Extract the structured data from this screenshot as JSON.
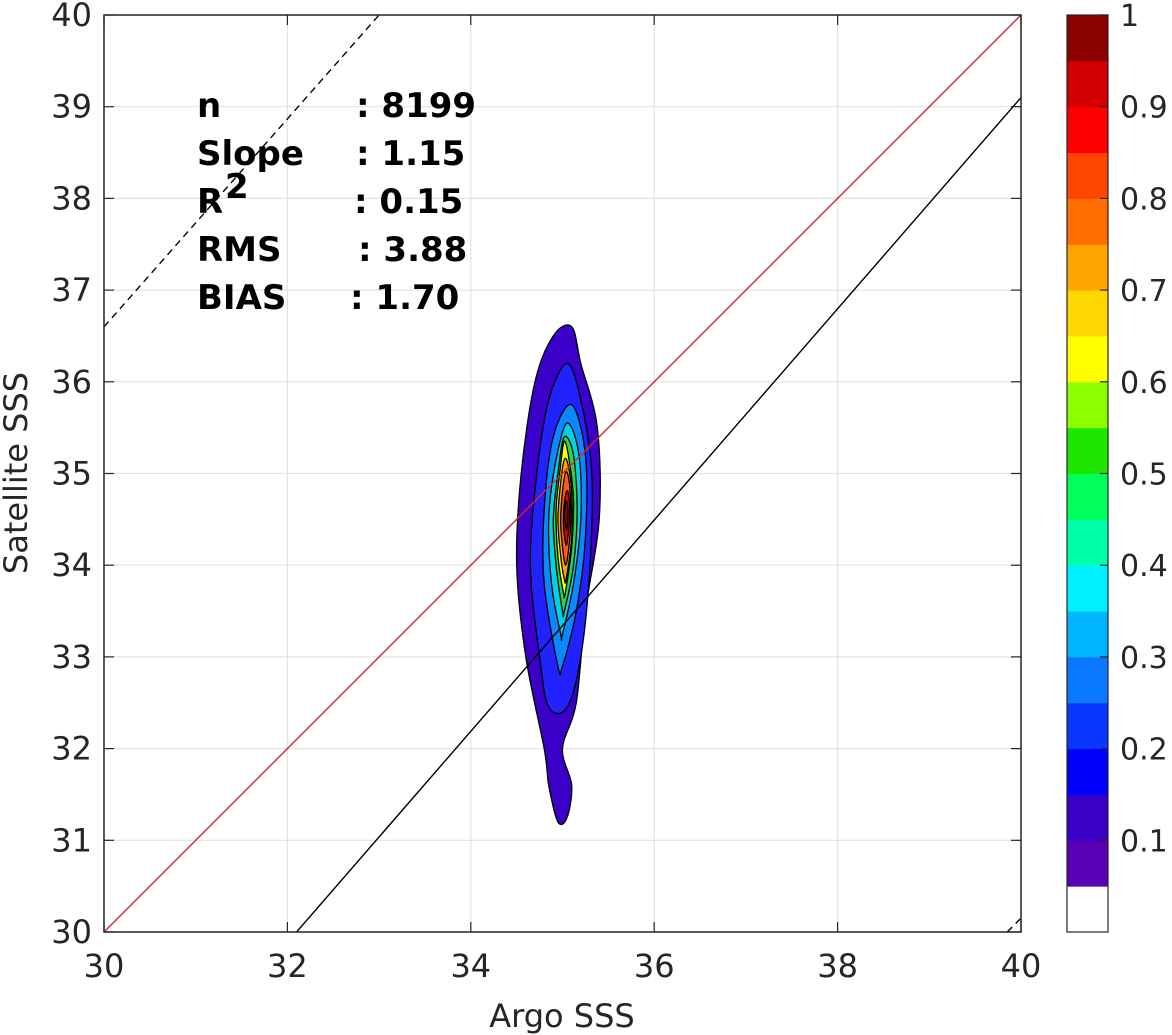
{
  "chart_data": {
    "type": "contour",
    "xlabel": "Argo SSS",
    "ylabel": "Satellite SSS",
    "xlim": [
      30,
      40
    ],
    "ylim": [
      30,
      40
    ],
    "x_ticks": [
      "30",
      "32",
      "34",
      "36",
      "38",
      "40"
    ],
    "y_ticks": [
      "30",
      "31",
      "32",
      "33",
      "34",
      "35",
      "36",
      "37",
      "38",
      "39",
      "40"
    ],
    "grid": true,
    "stats": [
      {
        "label": "n",
        "value": ": 8199"
      },
      {
        "label": "Slope",
        "value": ": 1.15"
      },
      {
        "label": "R",
        "sup": "2",
        "value": ": 0.15"
      },
      {
        "label": "RMS",
        "value": ": 3.88"
      },
      {
        "label": "BIAS",
        "value": ": 1.70"
      }
    ],
    "lines": [
      {
        "name": "one-to-one",
        "color": "#d62728",
        "style": "solid",
        "points": [
          [
            30,
            30
          ],
          [
            40,
            40
          ]
        ]
      },
      {
        "name": "fit",
        "color": "#000000",
        "style": "solid",
        "points": [
          [
            32.1,
            30
          ],
          [
            40,
            39.1
          ]
        ]
      },
      {
        "name": "upper",
        "color": "#000000",
        "style": "dashed",
        "points": [
          [
            30,
            36.6
          ],
          [
            33,
            40
          ]
        ]
      },
      {
        "name": "lower",
        "color": "#000000",
        "style": "dashed",
        "points": [
          [
            39.85,
            30
          ],
          [
            40,
            30.15
          ]
        ]
      }
    ],
    "contour_levels": [
      0.05,
      0.15,
      0.25,
      0.35,
      0.45,
      0.55,
      0.65,
      0.75,
      0.85,
      0.95
    ],
    "contours": [
      {
        "level": 0.1,
        "color": "#3a00c8",
        "points": [
          [
            34.95,
            31.2
          ],
          [
            35.05,
            31.25
          ],
          [
            35.1,
            31.6
          ],
          [
            35.0,
            32.0
          ],
          [
            35.15,
            32.5
          ],
          [
            35.25,
            33.5
          ],
          [
            35.4,
            34.5
          ],
          [
            35.38,
            35.5
          ],
          [
            35.2,
            36.2
          ],
          [
            35.1,
            36.6
          ],
          [
            34.9,
            36.5
          ],
          [
            34.7,
            36.0
          ],
          [
            34.55,
            35.0
          ],
          [
            34.5,
            34.0
          ],
          [
            34.6,
            33.0
          ],
          [
            34.8,
            32.0
          ],
          [
            34.85,
            31.6
          ]
        ]
      },
      {
        "level": 0.2,
        "color": "#2222ff",
        "points": [
          [
            35.05,
            32.45
          ],
          [
            35.2,
            33.0
          ],
          [
            35.3,
            34.0
          ],
          [
            35.32,
            35.0
          ],
          [
            35.2,
            35.8
          ],
          [
            35.05,
            36.2
          ],
          [
            34.85,
            35.8
          ],
          [
            34.72,
            35.0
          ],
          [
            34.65,
            34.0
          ],
          [
            34.75,
            33.0
          ],
          [
            34.85,
            32.45
          ]
        ]
      },
      {
        "level": 0.3,
        "color": "#0a88ff",
        "points": [
          [
            35.0,
            32.9
          ],
          [
            35.15,
            33.5
          ],
          [
            35.25,
            34.3
          ],
          [
            35.25,
            35.2
          ],
          [
            35.1,
            35.75
          ],
          [
            34.9,
            35.4
          ],
          [
            34.8,
            34.6
          ],
          [
            34.8,
            33.8
          ],
          [
            34.95,
            32.9
          ]
        ]
      },
      {
        "level": 0.4,
        "color": "#00d2e6",
        "points": [
          [
            35.0,
            33.25
          ],
          [
            35.12,
            33.8
          ],
          [
            35.2,
            34.5
          ],
          [
            35.18,
            35.2
          ],
          [
            35.05,
            35.55
          ],
          [
            34.92,
            35.1
          ],
          [
            34.85,
            34.5
          ],
          [
            34.88,
            33.8
          ],
          [
            34.98,
            33.25
          ]
        ]
      },
      {
        "level": 0.5,
        "color": "#24d84a",
        "points": [
          [
            35.02,
            33.5
          ],
          [
            35.12,
            34.0
          ],
          [
            35.16,
            34.6
          ],
          [
            35.12,
            35.2
          ],
          [
            35.02,
            35.4
          ],
          [
            34.95,
            35.0
          ],
          [
            34.9,
            34.5
          ],
          [
            34.93,
            34.0
          ],
          [
            35.0,
            33.5
          ]
        ]
      },
      {
        "level": 0.6,
        "color": "#ffff00",
        "points": [
          [
            35.03,
            33.7
          ],
          [
            35.1,
            34.2
          ],
          [
            35.12,
            34.7
          ],
          [
            35.08,
            35.1
          ],
          [
            35.02,
            35.35
          ],
          [
            34.97,
            35.0
          ],
          [
            34.93,
            34.6
          ],
          [
            34.95,
            34.1
          ],
          [
            35.01,
            33.7
          ]
        ]
      },
      {
        "level": 0.7,
        "color": "#ffa500",
        "points": [
          [
            35.04,
            33.85
          ],
          [
            35.1,
            34.3
          ],
          [
            35.1,
            34.8
          ],
          [
            35.06,
            35.1
          ],
          [
            35.02,
            35.15
          ],
          [
            34.98,
            34.9
          ],
          [
            34.95,
            34.5
          ],
          [
            34.98,
            34.1
          ],
          [
            35.02,
            33.85
          ]
        ]
      },
      {
        "level": 0.8,
        "color": "#ff5a1e",
        "points": [
          [
            35.05,
            34.05
          ],
          [
            35.09,
            34.45
          ],
          [
            35.08,
            34.85
          ],
          [
            35.04,
            35.02
          ],
          [
            35.0,
            34.8
          ],
          [
            34.98,
            34.45
          ],
          [
            35.02,
            34.05
          ]
        ]
      },
      {
        "level": 0.9,
        "color": "#e60000",
        "points": [
          [
            35.05,
            34.25
          ],
          [
            35.08,
            34.55
          ],
          [
            35.06,
            34.8
          ],
          [
            35.03,
            34.75
          ],
          [
            35.01,
            34.5
          ],
          [
            35.03,
            34.25
          ]
        ]
      },
      {
        "level": 1.0,
        "color": "#8b0000",
        "points": [
          [
            35.05,
            34.4
          ],
          [
            35.06,
            34.6
          ],
          [
            35.04,
            34.7
          ],
          [
            35.02,
            34.55
          ],
          [
            35.04,
            34.4
          ]
        ]
      }
    ],
    "colorbar": {
      "colors": [
        "#ffffff",
        "#5a00b4",
        "#3a00c8",
        "#0000ff",
        "#0a37ff",
        "#0a78ff",
        "#00b4ff",
        "#00f0ff",
        "#00ffaa",
        "#00ff5a",
        "#1ee600",
        "#8cff00",
        "#ffff00",
        "#ffd700",
        "#ffa500",
        "#ff6e00",
        "#ff4600",
        "#ff0000",
        "#d20000",
        "#8b0000"
      ],
      "ticks": [
        "0.1",
        "0.2",
        "0.3",
        "0.4",
        "0.5",
        "0.6",
        "0.7",
        "0.8",
        "0.9",
        "1"
      ]
    }
  }
}
